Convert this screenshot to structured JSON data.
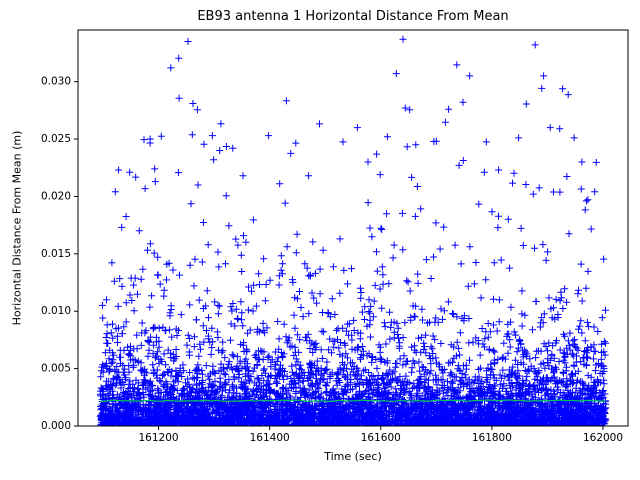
{
  "chart_data": {
    "type": "scatter",
    "title": "EB93 antenna 1 Horizontal Distance From Mean",
    "xlabel": "Time (sec)",
    "ylabel": "Horizontal Distance From Mean (m)",
    "xlim": [
      161055,
      162045
    ],
    "ylim": [
      0,
      0.0345
    ],
    "x_ticks": [
      161200,
      161400,
      161600,
      161800,
      162000
    ],
    "y_ticks": [
      0.0,
      0.005,
      0.01,
      0.015,
      0.02,
      0.025,
      0.03
    ],
    "y_tick_decimals": 3,
    "grid": false,
    "legend": "none",
    "frame_color": "#000000",
    "marker": "+",
    "marker_color": "#0000ff",
    "marker_size": 7,
    "series": [
      {
        "name": "horizontal-distance-cloud",
        "kind": "scatter-cloud",
        "x_range": [
          161095,
          162005
        ],
        "n_points": 6000,
        "seed": 93,
        "y_mixture": [
          {
            "weight": 0.75,
            "scale": 0.0018
          },
          {
            "weight": 0.25,
            "scale": 0.0055
          }
        ],
        "y_max": 0.034
      },
      {
        "name": "high-outliers",
        "kind": "points",
        "points": [
          [
            161128,
            0.0223
          ],
          [
            161148,
            0.0221
          ],
          [
            161185,
            0.025
          ],
          [
            161193,
            0.0224
          ],
          [
            161205,
            0.02525
          ],
          [
            161222,
            0.0312
          ],
          [
            161237,
            0.02855
          ],
          [
            161253,
            0.0335
          ],
          [
            161262,
            0.0281
          ],
          [
            161270,
            0.02755
          ],
          [
            161297,
            0.0253
          ],
          [
            161310,
            0.024
          ],
          [
            161352,
            0.0218
          ],
          [
            161398,
            0.0253
          ],
          [
            161418,
            0.0211
          ],
          [
            161447,
            0.02465
          ],
          [
            161470,
            0.0218
          ],
          [
            161532,
            0.02475
          ],
          [
            161558,
            0.026
          ],
          [
            161577,
            0.023
          ],
          [
            161612,
            0.0252
          ],
          [
            161628,
            0.0307
          ],
          [
            161640,
            0.0337
          ],
          [
            161652,
            0.02755
          ],
          [
            161663,
            0.0245
          ],
          [
            161700,
            0.0248
          ],
          [
            161722,
            0.0276
          ],
          [
            161741,
            0.0227
          ],
          [
            161748,
            0.0282
          ],
          [
            161760,
            0.0305
          ],
          [
            161790,
            0.02475
          ],
          [
            161812,
            0.0223
          ],
          [
            161848,
            0.0251
          ],
          [
            161862,
            0.02805
          ],
          [
            161878,
            0.0332
          ],
          [
            161893,
            0.0305
          ],
          [
            161905,
            0.026
          ],
          [
            161922,
            0.0259
          ],
          [
            161948,
            0.0251
          ],
          [
            161962,
            0.023
          ],
          [
            161985,
            0.0204
          ]
        ]
      },
      {
        "name": "mean-line",
        "kind": "hline",
        "y": 0.0022,
        "jitter": 0.00012,
        "x_range": [
          161095,
          162005
        ],
        "color": "#00cc55",
        "width": 1.2
      }
    ]
  }
}
